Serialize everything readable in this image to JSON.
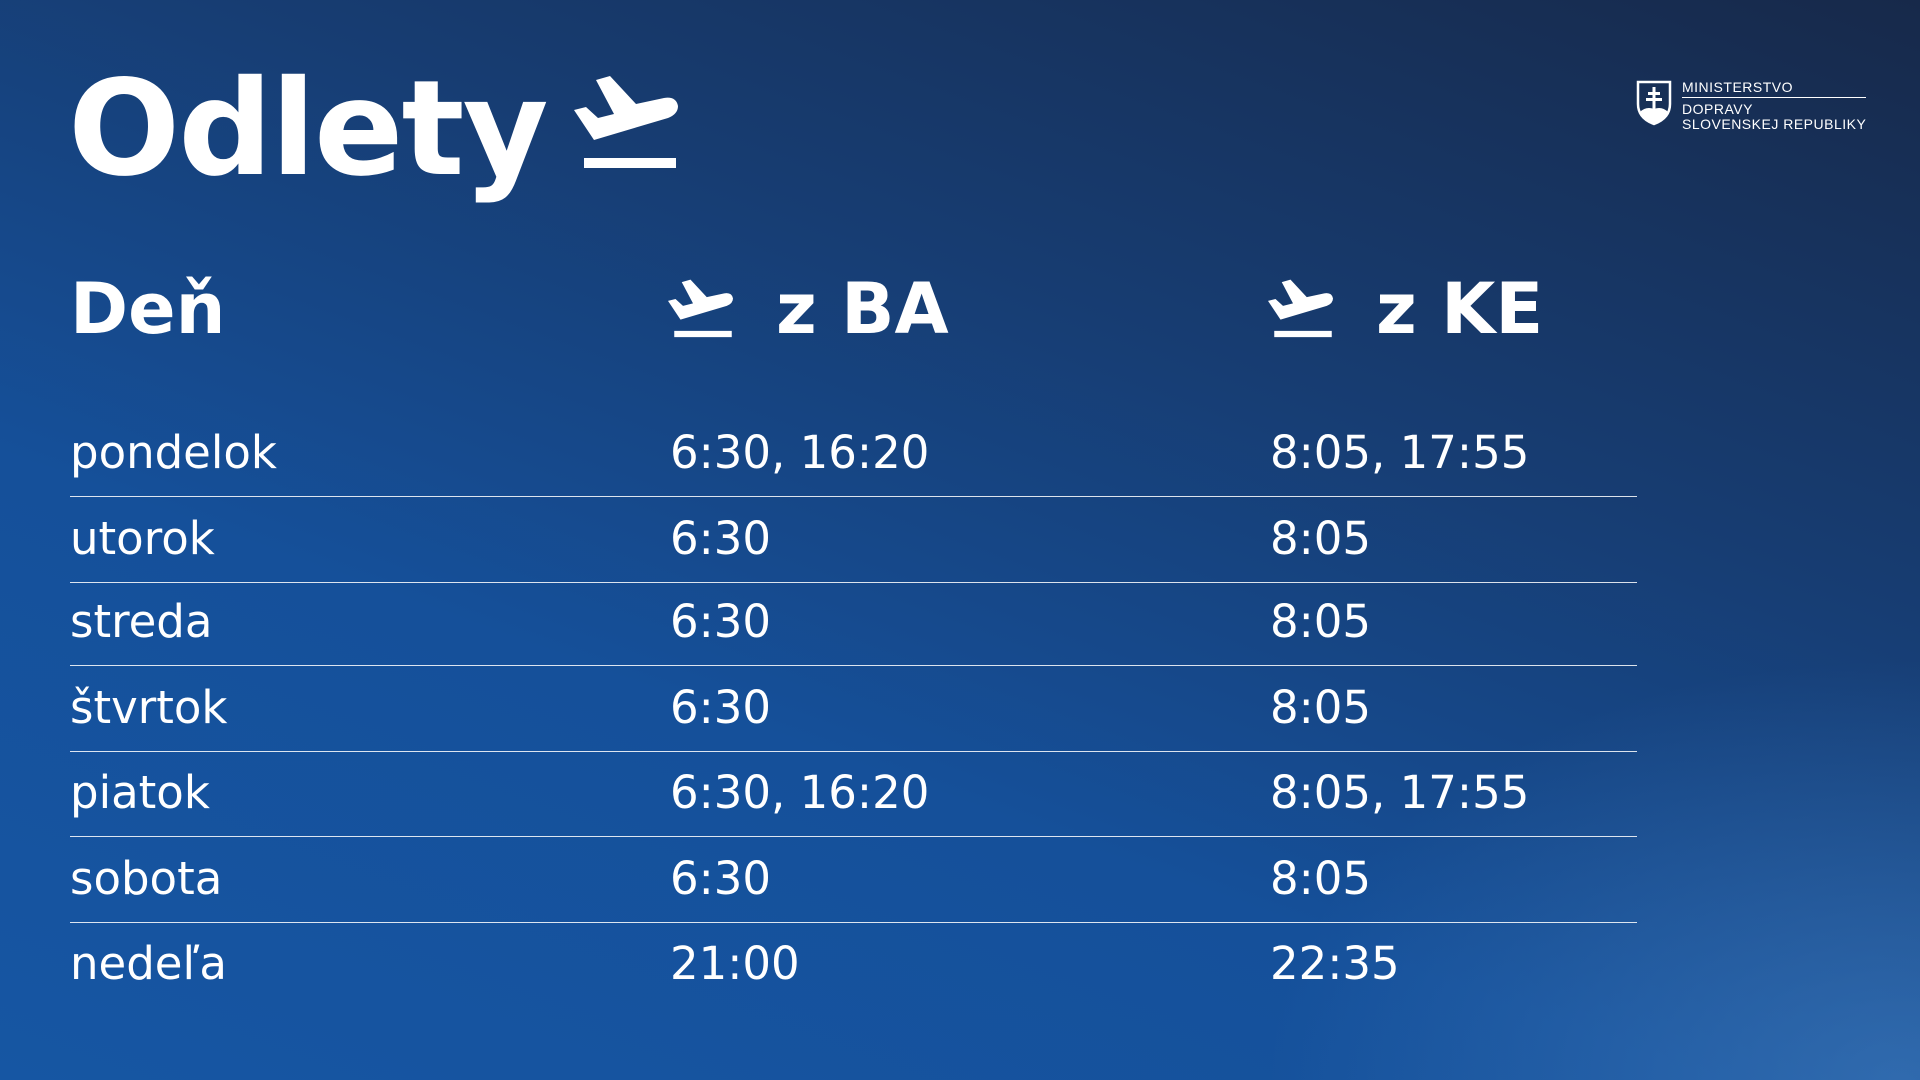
{
  "title": "Odlety",
  "logo": {
    "line1": "MINISTERSTVO",
    "line2": "DOPRAVY",
    "line3": "SLOVENSKEJ REPUBLIKY"
  },
  "headers": {
    "day": "Deň",
    "ba": "z BA",
    "ke": "z KE"
  },
  "rows": [
    {
      "day": "pondelok",
      "ba": "6:30, 16:20",
      "ke": "8:05, 17:55"
    },
    {
      "day": "utorok",
      "ba": "6:30",
      "ke": "8:05"
    },
    {
      "day": "streda",
      "ba": "6:30",
      "ke": "8:05"
    },
    {
      "day": "štvrtok",
      "ba": "6:30",
      "ke": "8:05"
    },
    {
      "day": "piatok",
      "ba": "6:30, 16:20",
      "ke": "8:05, 17:55"
    },
    {
      "day": "sobota",
      "ba": "6:30",
      "ke": "8:05"
    },
    {
      "day": "nedeľa",
      "ba": "21:00",
      "ke": "22:35"
    }
  ],
  "icons": {
    "departure": "airplane-takeoff-icon",
    "logo": "slovak-coat-of-arms-icon"
  }
}
